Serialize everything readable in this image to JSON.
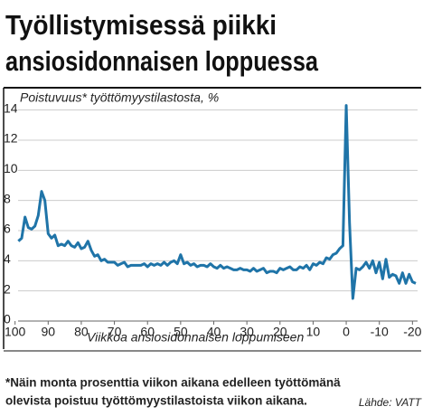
{
  "chart_data": {
    "type": "line",
    "title": [
      "Työllistymisessä piikki",
      "ansiosidonnaisen loppuessa"
    ],
    "subtitle": "Poistuvuus* työttömyystilastosta, %",
    "x_label": "Viikkoa ansiosidonnaisen loppumiseen",
    "footnote": [
      "*Näin monta prosenttia viikon aikana edelleen työttömänä",
      "olevista poistuu työttömyystilastoista viikon aikana."
    ],
    "source": "Lähde: VATT",
    "color": "#1f74a8",
    "x": [
      99,
      98,
      97,
      96,
      95,
      94,
      93,
      92,
      91,
      90,
      89,
      88,
      87,
      86,
      85,
      84,
      83,
      82,
      81,
      80,
      79,
      78,
      77,
      76,
      75,
      74,
      73,
      72,
      71,
      70,
      69,
      68,
      67,
      66,
      65,
      64,
      63,
      62,
      61,
      60,
      59,
      58,
      57,
      56,
      55,
      54,
      53,
      52,
      51,
      50,
      49,
      48,
      47,
      46,
      45,
      44,
      43,
      42,
      41,
      40,
      39,
      38,
      37,
      36,
      35,
      34,
      33,
      32,
      31,
      30,
      29,
      28,
      27,
      26,
      25,
      24,
      23,
      22,
      21,
      20,
      19,
      18,
      17,
      16,
      15,
      14,
      13,
      12,
      11,
      10,
      9,
      8,
      7,
      6,
      5,
      4,
      3,
      2,
      1,
      0,
      -1,
      -2,
      -3,
      -4,
      -5,
      -6,
      -7,
      -8,
      -9,
      -10,
      -11,
      -12,
      -13,
      -14,
      -15,
      -16,
      -17,
      -18,
      -19,
      -20,
      -21
    ],
    "values": [
      5.3,
      5.5,
      6.9,
      6.2,
      6.1,
      6.3,
      7.0,
      8.6,
      8.0,
      5.8,
      5.5,
      5.7,
      5.0,
      5.1,
      5.0,
      5.3,
      5.0,
      4.9,
      5.2,
      4.8,
      4.9,
      5.3,
      4.7,
      4.3,
      4.4,
      4.0,
      4.1,
      3.9,
      3.9,
      3.9,
      3.7,
      3.8,
      3.9,
      3.6,
      3.7,
      3.7,
      3.7,
      3.7,
      3.8,
      3.6,
      3.8,
      3.7,
      3.8,
      3.7,
      3.9,
      3.7,
      3.9,
      4.0,
      3.8,
      4.4,
      3.8,
      3.9,
      3.7,
      3.8,
      3.6,
      3.7,
      3.7,
      3.6,
      3.8,
      3.6,
      3.5,
      3.7,
      3.5,
      3.6,
      3.5,
      3.4,
      3.4,
      3.5,
      3.4,
      3.4,
      3.3,
      3.5,
      3.3,
      3.4,
      3.5,
      3.2,
      3.3,
      3.3,
      3.2,
      3.5,
      3.4,
      3.5,
      3.6,
      3.4,
      3.4,
      3.6,
      3.5,
      3.7,
      3.4,
      3.8,
      3.7,
      3.9,
      3.8,
      4.2,
      4.1,
      4.4,
      4.5,
      4.8,
      5.0,
      14.3,
      6.5,
      1.5,
      3.5,
      3.4,
      3.6,
      3.9,
      3.5,
      4.0,
      3.2,
      3.9,
      2.8,
      4.1,
      2.9,
      3.1,
      3.0,
      2.5,
      3.2,
      2.5,
      3.1,
      2.6,
      2.5
    ],
    "xlim": [
      101,
      -21
    ],
    "xticks": [
      100,
      90,
      80,
      70,
      60,
      50,
      40,
      30,
      20,
      10,
      0,
      -10,
      -20
    ],
    "ylim": [
      0,
      15
    ],
    "yticks": [
      0,
      2,
      4,
      6,
      8,
      10,
      12,
      14
    ],
    "grid": true
  }
}
